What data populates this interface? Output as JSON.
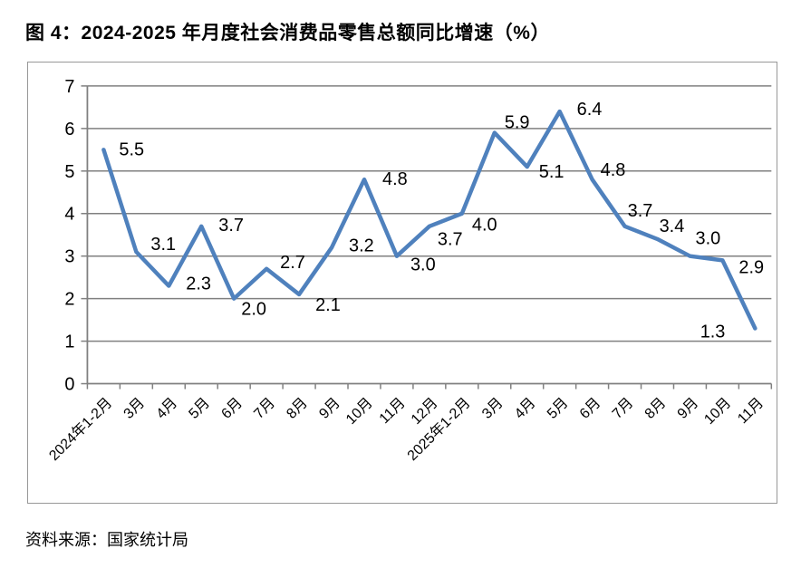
{
  "figure": {
    "title": "图 4：2024-2025 年月度社会消费品零售总额同比增速（%）",
    "source": "资料来源：国家统计局"
  },
  "chart_data": {
    "type": "line",
    "title": "图 4：2024-2025 年月度社会消费品零售总额同比增速（%）",
    "categories": [
      "2024年1-2月",
      "3月",
      "4月",
      "5月",
      "6月",
      "7月",
      "8月",
      "9月",
      "10月",
      "11月",
      "12月",
      "2025年1-2月",
      "3月",
      "4月",
      "5月",
      "6月",
      "7月",
      "8月",
      "9月",
      "10月",
      "11月"
    ],
    "values": [
      5.5,
      3.1,
      2.3,
      3.7,
      2.0,
      2.7,
      2.1,
      3.2,
      4.8,
      3.0,
      3.7,
      4.0,
      5.9,
      5.1,
      6.4,
      4.8,
      3.7,
      3.4,
      3.0,
      2.9,
      1.3
    ],
    "xlabel": "",
    "ylabel": "",
    "ylim": [
      0,
      7
    ],
    "ytick_interval": 1,
    "yticks": [
      "0",
      "1",
      "2",
      "3",
      "4",
      "5",
      "6",
      "7"
    ],
    "grid": true,
    "legend": false,
    "data_labels": true,
    "x_label_rotation": -45,
    "line_color": "#4F81BD",
    "gridline_color": "#808080",
    "axis_color": "#808080",
    "label_color": "#000000"
  }
}
